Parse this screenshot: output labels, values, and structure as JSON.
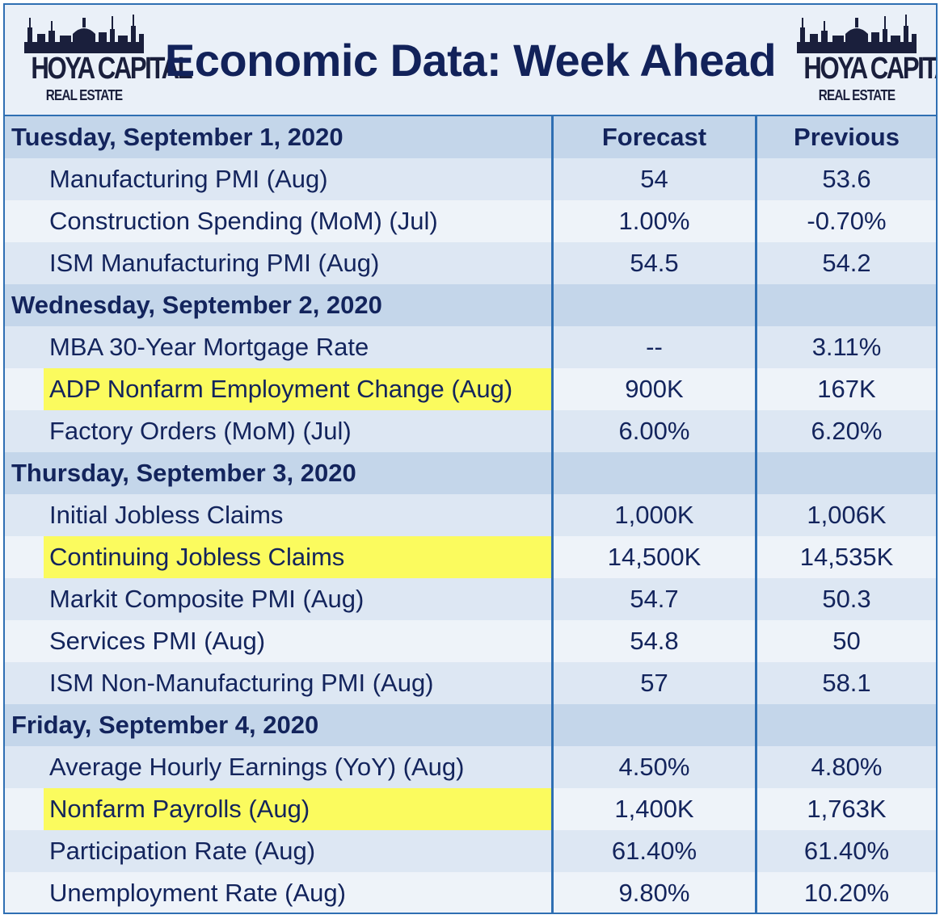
{
  "header": {
    "title": "Economic Data: Week Ahead",
    "logo_main": "HOYA CAPITAL",
    "logo_sub": "REAL ESTATE",
    "colors": {
      "title": "#12225a",
      "border": "#2f6fb3",
      "highlight": "#fbfb5e",
      "day_row": "#c4d6ea"
    }
  },
  "columns": {
    "forecast": "Forecast",
    "previous": "Previous"
  },
  "days": [
    {
      "date": "Tuesday, September 1, 2020",
      "items": [
        {
          "name": "Manufacturing PMI (Aug)",
          "forecast": "54",
          "previous": "53.6",
          "highlight": false
        },
        {
          "name": "Construction Spending (MoM) (Jul)",
          "forecast": "1.00%",
          "previous": "-0.70%",
          "highlight": false
        },
        {
          "name": "ISM Manufacturing PMI (Aug)",
          "forecast": "54.5",
          "previous": "54.2",
          "highlight": false
        }
      ]
    },
    {
      "date": "Wednesday, September 2, 2020",
      "items": [
        {
          "name": "MBA 30-Year Mortgage Rate",
          "forecast": "--",
          "previous": "3.11%",
          "highlight": false
        },
        {
          "name": "ADP Nonfarm Employment Change (Aug)",
          "forecast": "900K",
          "previous": "167K",
          "highlight": true
        },
        {
          "name": "Factory Orders (MoM) (Jul)",
          "forecast": "6.00%",
          "previous": "6.20%",
          "highlight": false
        }
      ]
    },
    {
      "date": "Thursday, September 3, 2020",
      "items": [
        {
          "name": "Initial Jobless Claims",
          "forecast": "1,000K",
          "previous": "1,006K",
          "highlight": false
        },
        {
          "name": "Continuing Jobless Claims",
          "forecast": "14,500K",
          "previous": "14,535K",
          "highlight": true
        },
        {
          "name": "Markit Composite PMI (Aug)",
          "forecast": "54.7",
          "previous": "50.3",
          "highlight": false
        },
        {
          "name": "Services PMI (Aug)",
          "forecast": "54.8",
          "previous": "50",
          "highlight": false
        },
        {
          "name": "ISM Non-Manufacturing PMI (Aug)",
          "forecast": "57",
          "previous": "58.1",
          "highlight": false
        }
      ]
    },
    {
      "date": "Friday, September 4, 2020",
      "items": [
        {
          "name": "Average Hourly Earnings (YoY) (Aug)",
          "forecast": "4.50%",
          "previous": "4.80%",
          "highlight": false
        },
        {
          "name": "Nonfarm Payrolls (Aug)",
          "forecast": "1,400K",
          "previous": "1,763K",
          "highlight": true
        },
        {
          "name": "Participation Rate (Aug)",
          "forecast": "61.40%",
          "previous": "61.40%",
          "highlight": false
        },
        {
          "name": "Unemployment Rate (Aug)",
          "forecast": "9.80%",
          "previous": "10.20%",
          "highlight": false
        }
      ]
    }
  ]
}
